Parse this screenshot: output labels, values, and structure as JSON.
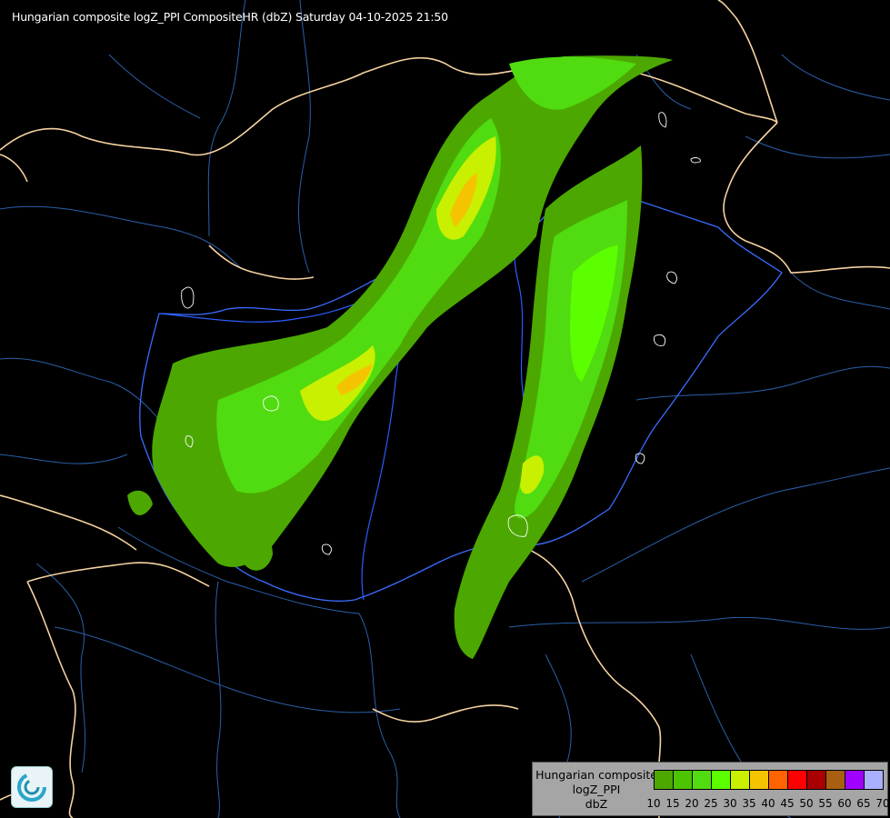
{
  "title": "Hungarian composite logZ_PPI CompositeHR (dbZ) Saturday 04-10-2025 21:50",
  "map": {
    "border_color": "#f5d2a0",
    "river_color": "#2a5cff",
    "minor_border_color": "#2a5fa8",
    "cloud_outline_color": "#ffffff",
    "logo_icon": "swirl-logo-icon"
  },
  "legend": {
    "label_lines": [
      "Hungarian composite",
      "logZ_PPI",
      "dbZ"
    ],
    "bins": [
      {
        "from": 10,
        "to": 15,
        "color": "#4ca800"
      },
      {
        "from": 15,
        "to": 20,
        "color": "#4cc400"
      },
      {
        "from": 20,
        "to": 25,
        "color": "#50dc10"
      },
      {
        "from": 25,
        "to": 30,
        "color": "#5cff00"
      },
      {
        "from": 30,
        "to": 35,
        "color": "#c8f000"
      },
      {
        "from": 35,
        "to": 40,
        "color": "#f5c400"
      },
      {
        "from": 40,
        "to": 45,
        "color": "#ff6400"
      },
      {
        "from": 45,
        "to": 50,
        "color": "#ff0000"
      },
      {
        "from": 50,
        "to": 55,
        "color": "#a80000"
      },
      {
        "from": 55,
        "to": 60,
        "color": "#a86010"
      },
      {
        "from": 60,
        "to": 65,
        "color": "#a000ff"
      },
      {
        "from": 65,
        "to": 70,
        "color": "#aab0ff"
      }
    ],
    "ticks": [
      "10",
      "15",
      "20",
      "25",
      "30",
      "35",
      "40",
      "45",
      "50",
      "55",
      "60",
      "65",
      "70"
    ]
  }
}
